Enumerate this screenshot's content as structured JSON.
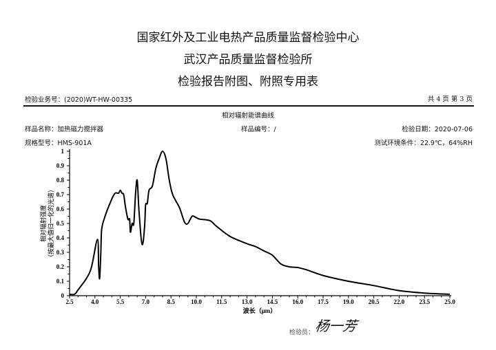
{
  "header": {
    "title_line1": "国家红外及工业电热产品质量监督检验中心",
    "title_line2": "武汉产品质量监督检验所",
    "title_line3": "检验报告附图、附照专用表",
    "business_no": "检验业务号：(2020)WT-HW-00335",
    "page_info": "共 4 页 第 3 页"
  },
  "info": {
    "chart_title": "相对辐射能谱曲线",
    "sample_name": "样品名称：加热磁力搅拌器",
    "sample_no": "样品编号：/",
    "test_date": "检验日期：2020-07-06",
    "model": "规格型号：HMS-901A",
    "environment": "测试环境条件：22.9℃，64%RH"
  },
  "footer": {
    "inspector_label": "检验员：",
    "signature": "杨一芳"
  },
  "chart_data": {
    "type": "line",
    "title": "相对辐射能谱曲线",
    "xlabel": "波长（μm）",
    "ylabel_line1": "相对辐射强度",
    "ylabel_line2": "（按最大值归一化的光谱）",
    "xlim": [
      2.5,
      25.0
    ],
    "ylim": [
      0,
      1
    ],
    "xticks": [
      "2.5",
      "4.0",
      "5.5",
      "7.0",
      "8.5",
      "10.0",
      "11.5",
      "13.0",
      "14.5",
      "16.0",
      "17.5",
      "19.0",
      "20.5",
      "22.0",
      "23.5",
      "25.0"
    ],
    "yticks": [
      "0",
      "0.1",
      "0.2",
      "0.3",
      "0.4",
      "0.5",
      "0.6",
      "0.7",
      "0.8",
      "0.9",
      "1"
    ],
    "grid": false,
    "line_color": "#000000",
    "x": [
      2.5,
      2.8,
      3.0,
      3.5,
      3.8,
      4.15,
      4.22,
      4.28,
      4.35,
      4.4,
      4.6,
      5.0,
      5.2,
      5.4,
      5.5,
      5.6,
      5.7,
      5.8,
      5.95,
      6.05,
      6.1,
      6.2,
      6.3,
      6.4,
      6.5,
      6.6,
      6.75,
      6.85,
      6.95,
      7.0,
      7.1,
      7.2,
      7.4,
      7.6,
      7.8,
      8.0,
      8.2,
      8.4,
      8.6,
      9.0,
      9.3,
      9.5,
      9.75,
      10.0,
      10.2,
      10.8,
      11.2,
      12.0,
      13.0,
      13.5,
      14.0,
      14.5,
      15.0,
      15.5,
      16.0,
      16.5,
      17.5,
      19.0,
      20.5,
      22.0,
      23.5,
      25.0
    ],
    "y": [
      0.01,
      0.01,
      0.04,
      0.12,
      0.2,
      0.39,
      0.2,
      0.12,
      0.3,
      0.46,
      0.55,
      0.67,
      0.71,
      0.71,
      0.73,
      0.71,
      0.7,
      0.62,
      0.53,
      0.53,
      0.44,
      0.5,
      0.5,
      0.7,
      0.8,
      0.6,
      0.38,
      0.37,
      0.5,
      0.63,
      0.64,
      0.73,
      0.76,
      0.88,
      0.95,
      1.0,
      0.95,
      0.8,
      0.7,
      0.61,
      0.51,
      0.5,
      0.55,
      0.54,
      0.53,
      0.52,
      0.48,
      0.41,
      0.36,
      0.34,
      0.31,
      0.28,
      0.22,
      0.2,
      0.195,
      0.18,
      0.14,
      0.1,
      0.07,
      0.035,
      0.018,
      0.01
    ]
  }
}
